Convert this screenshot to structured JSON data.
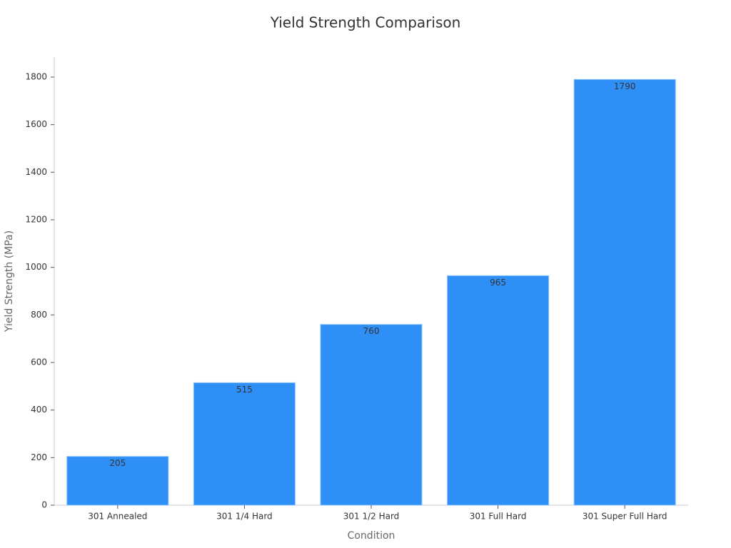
{
  "chart_data": {
    "type": "bar",
    "title": "Yield Strength Comparison",
    "x_label": "Condition",
    "y_label": "Yield Strength (MPa)",
    "categories": [
      "301 Annealed",
      "301 1/4 Hard",
      "301 1/2 Hard",
      "301 Full Hard",
      "301 Super Full Hard"
    ],
    "values": [
      205,
      515,
      760,
      965,
      1790
    ],
    "color": "#2e90f7",
    "ylim": [
      0,
      1884
    ],
    "yticks": [
      0,
      200,
      400,
      600,
      800,
      1000,
      1200,
      1400,
      1600,
      1800
    ],
    "grid": false
  }
}
